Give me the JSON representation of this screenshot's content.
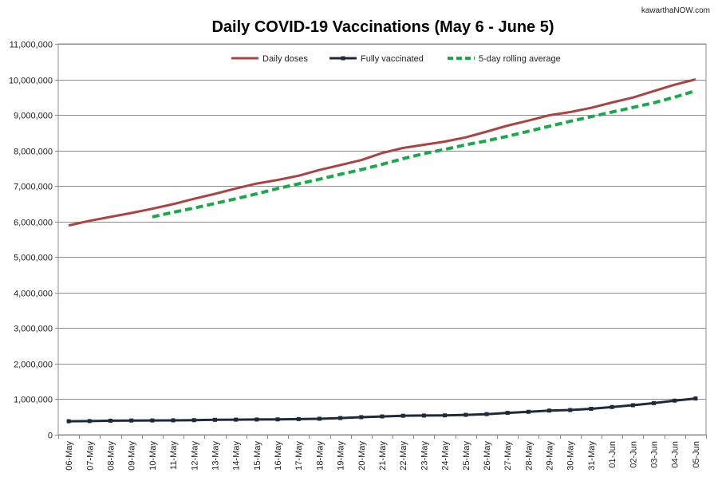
{
  "watermark": "kawarthaNOW.com",
  "chart_data": {
    "type": "line",
    "title": "Daily COVID-19 Vaccinations (May 6 - June 5)",
    "xlabel": "",
    "ylabel": "",
    "ylim": [
      0,
      11000000
    ],
    "yticks": [
      0,
      1000000,
      2000000,
      3000000,
      4000000,
      5000000,
      6000000,
      7000000,
      8000000,
      9000000,
      10000000,
      11000000
    ],
    "ytick_labels": [
      "0",
      "1,000,000",
      "2,000,000",
      "3,000,000",
      "4,000,000",
      "5,000,000",
      "6,000,000",
      "7,000,000",
      "8,000,000",
      "9,000,000",
      "10,000,000",
      "11,000,000"
    ],
    "grid": true,
    "legend": "top",
    "categories": [
      "06-May",
      "07-May",
      "08-May",
      "09-May",
      "10-May",
      "11-May",
      "12-May",
      "13-May",
      "14-May",
      "15-May",
      "16-May",
      "17-May",
      "18-May",
      "19-May",
      "20-May",
      "21-May",
      "22-May",
      "23-May",
      "24-May",
      "25-May",
      "26-May",
      "27-May",
      "28-May",
      "29-May",
      "30-May",
      "31-May",
      "01-Jun",
      "02-Jun",
      "03-Jun",
      "04-Jun",
      "05-Jun"
    ],
    "series": [
      {
        "name": "Daily doses",
        "color": "#a94442",
        "style": "solid",
        "values": [
          5890000,
          6020000,
          6130000,
          6240000,
          6360000,
          6490000,
          6640000,
          6780000,
          6930000,
          7070000,
          7170000,
          7290000,
          7450000,
          7590000,
          7730000,
          7930000,
          8070000,
          8160000,
          8250000,
          8370000,
          8530000,
          8700000,
          8840000,
          8990000,
          9080000,
          9200000,
          9350000,
          9490000,
          9670000,
          9850000,
          10000000
        ]
      },
      {
        "name": "Fully vaccinated",
        "color": "#1c2a3a",
        "style": "solid-markers",
        "values": [
          380000,
          385000,
          395000,
          400000,
          402000,
          405000,
          410000,
          420000,
          425000,
          428000,
          432000,
          440000,
          450000,
          470000,
          495000,
          515000,
          535000,
          540000,
          545000,
          560000,
          580000,
          615000,
          645000,
          680000,
          695000,
          730000,
          780000,
          830000,
          890000,
          960000,
          1020000
        ]
      },
      {
        "name": "5-day rolling average",
        "color": "#1aa84a",
        "style": "dashed",
        "values": [
          null,
          null,
          null,
          null,
          6130000,
          6260000,
          6380000,
          6510000,
          6640000,
          6780000,
          6930000,
          7060000,
          7190000,
          7330000,
          7460000,
          7610000,
          7770000,
          7910000,
          8030000,
          8160000,
          8270000,
          8400000,
          8540000,
          8680000,
          8820000,
          8950000,
          9080000,
          9210000,
          9340000,
          9500000,
          9680000
        ]
      }
    ]
  }
}
